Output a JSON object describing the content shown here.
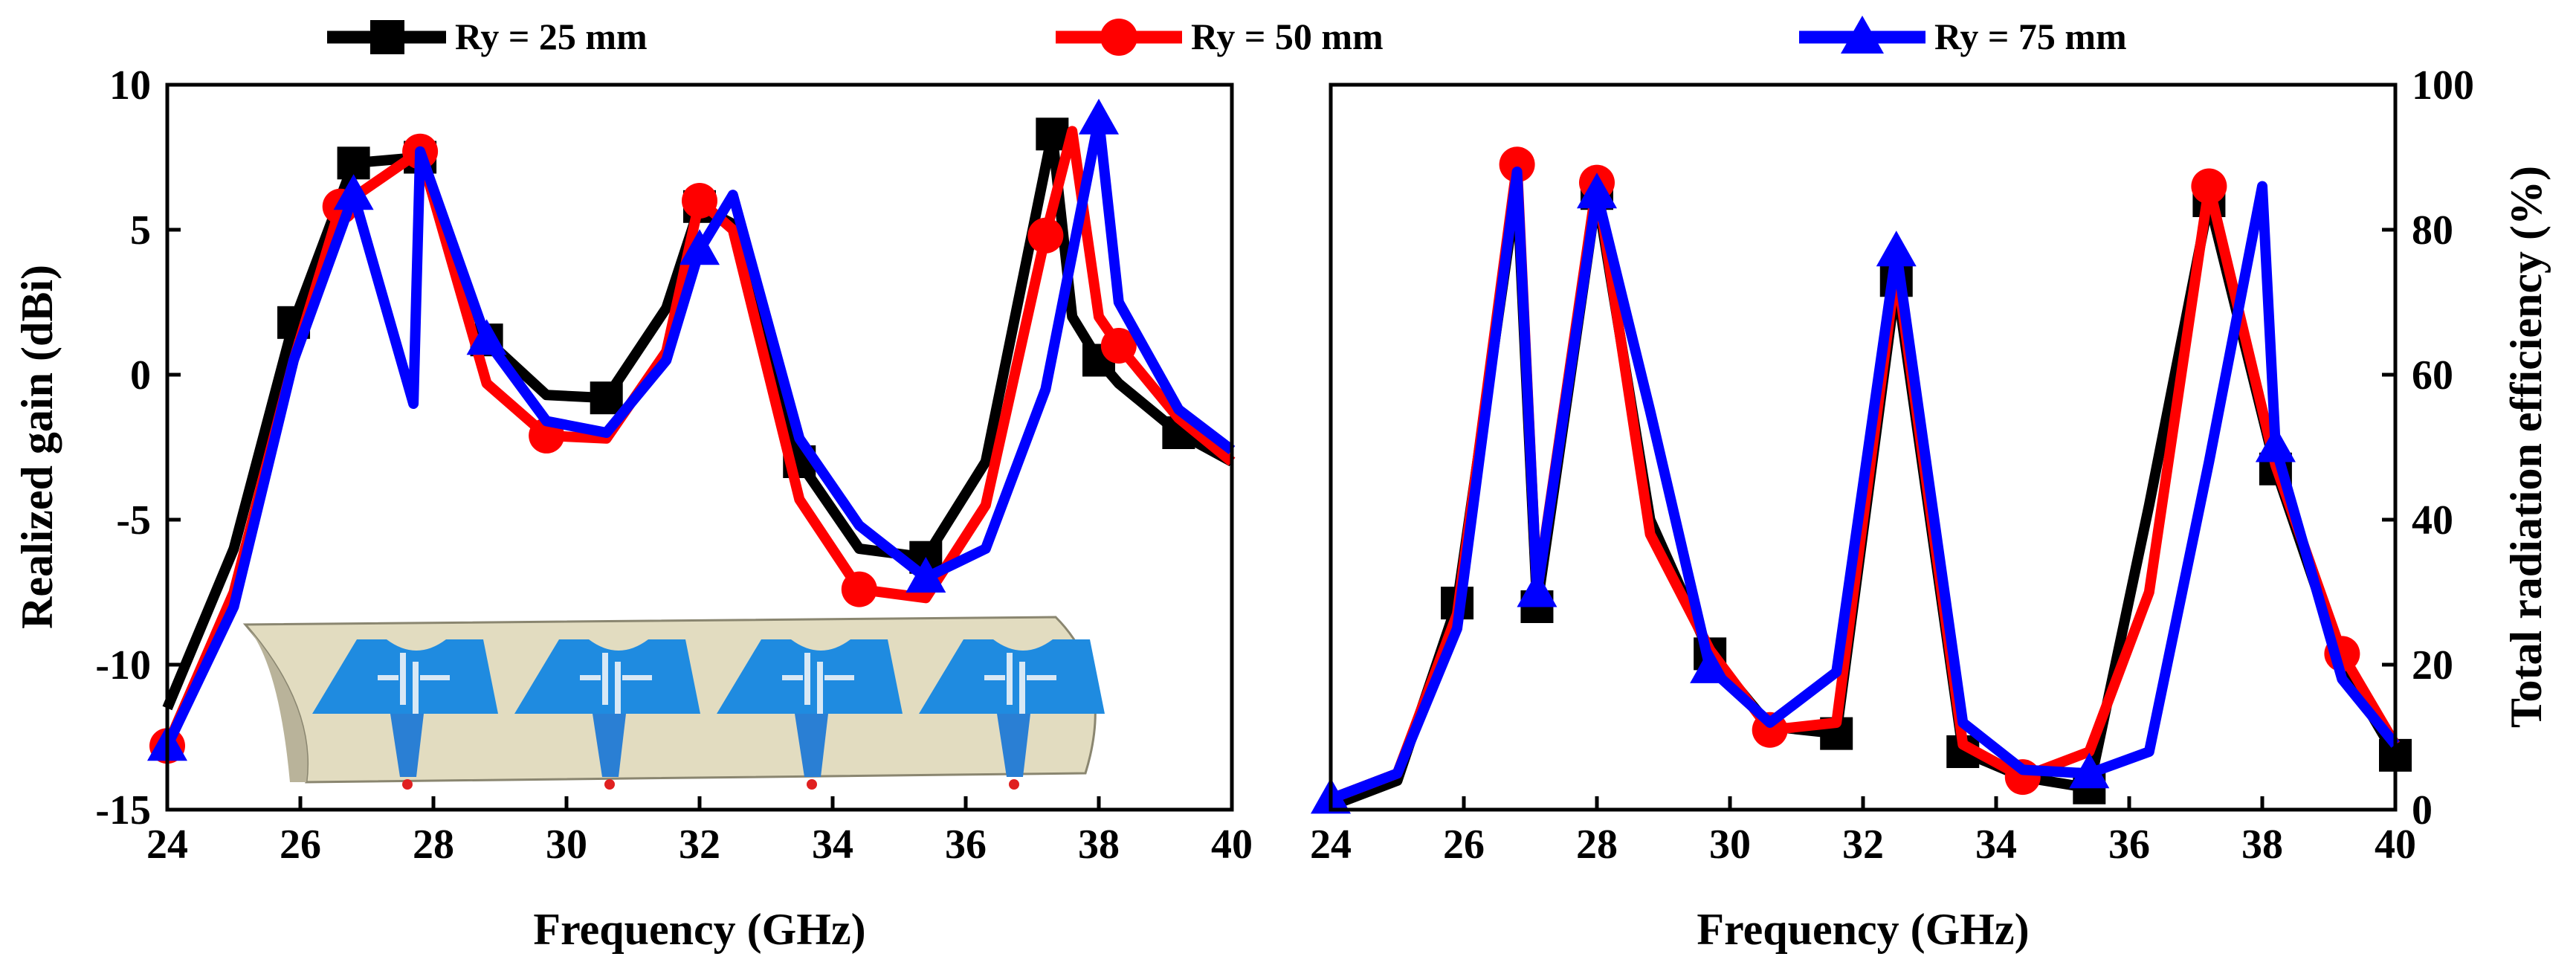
{
  "legend": [
    {
      "name": "Ry = 25 mm",
      "color": "#000000",
      "marker": "square"
    },
    {
      "name": "Ry = 50 mm",
      "color": "#ff0000",
      "marker": "circle"
    },
    {
      "name": "Ry = 75 mm",
      "color": "#0000ff",
      "marker": "triangle"
    }
  ],
  "chart_data": [
    {
      "type": "line",
      "title": "",
      "xlabel": "Frequency (GHz)",
      "ylabel": "Realized gain (dBi)",
      "xlim": [
        24,
        40
      ],
      "ylim": [
        -15,
        10
      ],
      "xticks": [
        24,
        26,
        28,
        30,
        32,
        34,
        36,
        38,
        40
      ],
      "yticks": [
        -15,
        -10,
        -5,
        0,
        5,
        10
      ],
      "inset": "conformal four-element antenna array on curved surface",
      "series": [
        {
          "name": "Ry = 25 mm",
          "color": "#000000",
          "marker": "square",
          "x": [
            24,
            25,
            25.9,
            26.8,
            27.8,
            28.8,
            29.7,
            30.6,
            31.5,
            32,
            32.5,
            33.5,
            34.4,
            35.4,
            36.3,
            37.3,
            37.6,
            38,
            38.3,
            39.2,
            40
          ],
          "y": [
            -11.5,
            -6,
            1.8,
            7.3,
            7.5,
            1.2,
            -0.7,
            -0.8,
            2.3,
            5.8,
            5.2,
            -3,
            -6,
            -6.3,
            -3,
            8.3,
            2,
            0.5,
            -0.3,
            -2,
            -3
          ],
          "marked": [
            false,
            false,
            true,
            true,
            true,
            true,
            false,
            true,
            false,
            true,
            false,
            true,
            false,
            true,
            false,
            true,
            false,
            true,
            false,
            true,
            false
          ]
        },
        {
          "name": "Ry = 50 mm",
          "color": "#ff0000",
          "marker": "circle",
          "x": [
            24,
            25,
            25.9,
            26.6,
            27.8,
            28.8,
            29.7,
            30.6,
            31.5,
            32,
            32.5,
            33.5,
            34.4,
            35.4,
            36.3,
            37.2,
            37.6,
            38,
            38.3,
            39.2,
            40
          ],
          "y": [
            -12.8,
            -7.5,
            0.5,
            5.8,
            7.7,
            -0.3,
            -2.1,
            -2.2,
            0.8,
            6,
            5,
            -4.3,
            -7.4,
            -7.7,
            -4.5,
            4.8,
            8.4,
            2,
            1,
            -1.5,
            -3
          ],
          "marked": [
            true,
            false,
            false,
            true,
            true,
            false,
            true,
            false,
            false,
            true,
            false,
            false,
            true,
            false,
            false,
            true,
            false,
            false,
            true,
            false,
            false
          ]
        },
        {
          "name": "Ry = 75 mm",
          "color": "#0000ff",
          "marker": "triangle",
          "x": [
            24,
            25,
            25.9,
            26.8,
            27.7,
            27.8,
            28.8,
            29.7,
            30.6,
            31.5,
            32,
            32.5,
            33.5,
            34.4,
            35.4,
            36.3,
            37.2,
            38,
            38.3,
            39.2,
            40
          ],
          "y": [
            -12.8,
            -8,
            0.5,
            6.2,
            -1,
            7.7,
            1.2,
            -1.6,
            -2,
            0.5,
            4.3,
            6.2,
            -2.2,
            -5.2,
            -7,
            -6,
            -0.5,
            8.8,
            2.5,
            -1.2,
            -2.6
          ],
          "marked": [
            true,
            false,
            false,
            true,
            false,
            false,
            true,
            false,
            false,
            false,
            true,
            false,
            false,
            false,
            true,
            false,
            false,
            true,
            false,
            false,
            false
          ]
        }
      ]
    },
    {
      "type": "line",
      "title": "",
      "xlabel": "Frequency (GHz)",
      "ylabel": "Total radiation efficiency (%)",
      "xlim": [
        24,
        40
      ],
      "ylim": [
        0,
        100
      ],
      "xticks": [
        24,
        26,
        28,
        30,
        32,
        34,
        36,
        38,
        40
      ],
      "yticks": [
        0,
        20,
        40,
        60,
        80,
        100
      ],
      "series": [
        {
          "name": "Ry = 25 mm",
          "color": "#000000",
          "marker": "square",
          "x": [
            24,
            25,
            25.9,
            26.8,
            27.1,
            28,
            28.8,
            29.7,
            30.6,
            31.6,
            32.5,
            33.5,
            34.4,
            35.4,
            36.3,
            37.2,
            38.2,
            39.2,
            40
          ],
          "y": [
            0.5,
            4,
            28.5,
            86,
            28,
            85,
            40,
            21.5,
            11.5,
            10.5,
            73,
            8,
            4.5,
            3,
            42,
            84,
            47,
            20,
            7.5
          ],
          "marked": [
            false,
            false,
            true,
            false,
            true,
            true,
            false,
            true,
            false,
            true,
            true,
            true,
            false,
            true,
            false,
            true,
            true,
            false,
            true
          ]
        },
        {
          "name": "Ry = 50 mm",
          "color": "#ff0000",
          "marker": "circle",
          "x": [
            24,
            25,
            25.9,
            26.8,
            27.1,
            28,
            28.8,
            29.7,
            30.6,
            31.6,
            32.5,
            33.5,
            34.4,
            35.4,
            36.3,
            37.2,
            38.2,
            39.2,
            40
          ],
          "y": [
            1.5,
            5,
            27,
            89,
            30,
            86.5,
            38,
            22,
            11,
            12,
            75,
            9,
            4.5,
            8,
            30,
            86,
            47.5,
            21.5,
            9
          ],
          "marked": [
            false,
            false,
            false,
            true,
            false,
            true,
            false,
            false,
            true,
            false,
            false,
            false,
            true,
            false,
            false,
            true,
            false,
            true,
            false
          ]
        },
        {
          "name": "Ry = 75 mm",
          "color": "#0000ff",
          "marker": "triangle",
          "x": [
            24,
            25,
            25.9,
            26.8,
            27.1,
            28,
            28.8,
            29.7,
            30.6,
            31.6,
            32.5,
            33.5,
            34.4,
            35.4,
            36.3,
            37.2,
            38,
            38.2,
            39.2,
            40
          ],
          "y": [
            1.5,
            5,
            25,
            88,
            30,
            85,
            55,
            19.5,
            12,
            19,
            77,
            12,
            5.5,
            5,
            8,
            48,
            86,
            50,
            18,
            9
          ],
          "marked": [
            true,
            false,
            false,
            false,
            true,
            true,
            false,
            true,
            false,
            false,
            true,
            false,
            false,
            true,
            false,
            false,
            false,
            true,
            false,
            false
          ]
        }
      ]
    }
  ]
}
